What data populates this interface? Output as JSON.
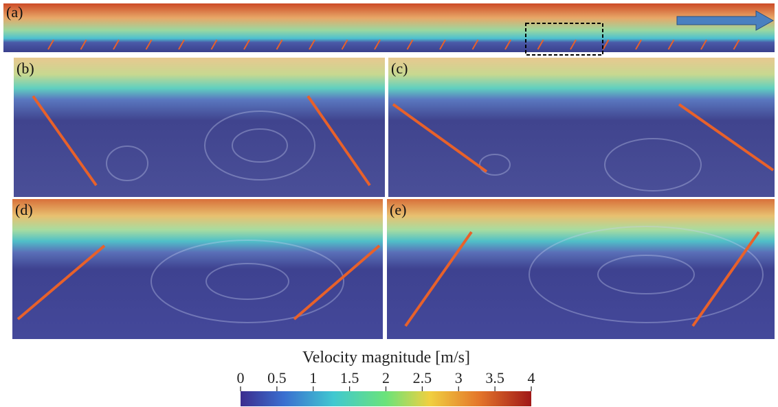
{
  "panels": [
    {
      "label": "(a)"
    },
    {
      "label": "(b)"
    },
    {
      "label": "(c)"
    },
    {
      "label": "(d)"
    },
    {
      "label": "(e)"
    }
  ],
  "colorbar": {
    "title": "Velocity magnitude [m/s]",
    "lim": [
      0,
      4
    ],
    "ticks": [
      0,
      0.5,
      1,
      1.5,
      2,
      2.5,
      3,
      3.5,
      4
    ]
  }
}
